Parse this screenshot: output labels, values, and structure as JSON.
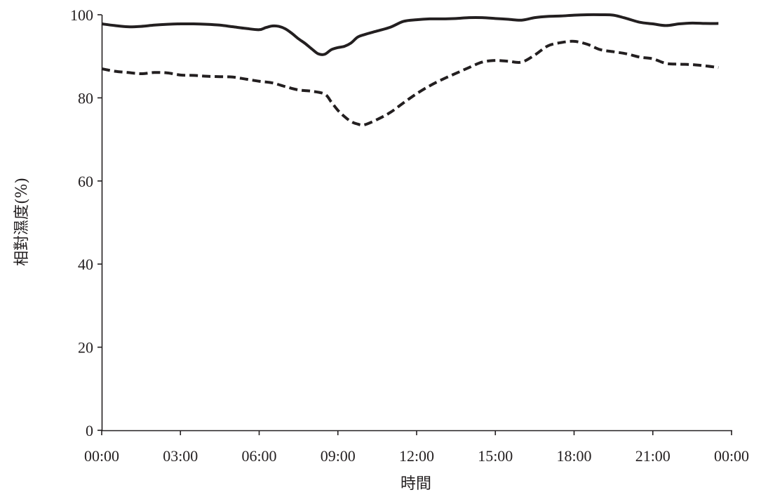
{
  "chart_data": {
    "type": "line",
    "xlabel": "時間",
    "ylabel": "相對濕度(%)",
    "x_tick_labels": [
      "00:00",
      "03:00",
      "06:00",
      "09:00",
      "12:00",
      "15:00",
      "18:00",
      "21:00",
      "00:00"
    ],
    "y_tick_labels": [
      "0",
      "20",
      "40",
      "60",
      "80",
      "100"
    ],
    "xlim": [
      0,
      24
    ],
    "ylim": [
      0,
      100
    ],
    "grid": false,
    "legend": null,
    "series": [
      {
        "style": "solid",
        "x": [
          0,
          0.5,
          1,
          1.5,
          2,
          2.5,
          3,
          3.5,
          4,
          4.5,
          5,
          5.5,
          6,
          6.25,
          6.5,
          6.75,
          7,
          7.25,
          7.5,
          7.75,
          8,
          8.25,
          8.5,
          8.75,
          9,
          9.25,
          9.5,
          9.75,
          10,
          10.5,
          11,
          11.5,
          12,
          12.5,
          13,
          13.5,
          14,
          14.5,
          15,
          15.5,
          16,
          16.5,
          17,
          17.5,
          18,
          18.5,
          19,
          19.5,
          20,
          20.5,
          21,
          21.5,
          22,
          22.5,
          23,
          23.5
        ],
        "y": [
          97.8,
          97.4,
          97.1,
          97.2,
          97.5,
          97.7,
          97.8,
          97.8,
          97.7,
          97.5,
          97.1,
          96.7,
          96.4,
          96.9,
          97.3,
          97.2,
          96.6,
          95.5,
          94.2,
          93.1,
          91.8,
          90.6,
          90.5,
          91.6,
          92.1,
          92.4,
          93.2,
          94.6,
          95.2,
          96.1,
          97.0,
          98.4,
          98.8,
          99.0,
          99.0,
          99.1,
          99.3,
          99.3,
          99.1,
          98.9,
          98.7,
          99.3,
          99.6,
          99.7,
          99.9,
          100.0,
          100.0,
          99.9,
          99.1,
          98.2,
          97.8,
          97.4,
          97.8,
          98.0,
          97.9,
          97.9
        ]
      },
      {
        "style": "dashed",
        "x": [
          0,
          0.5,
          1,
          1.5,
          2,
          2.5,
          3,
          3.5,
          4,
          4.5,
          5,
          5.5,
          6,
          6.5,
          7,
          7.5,
          8,
          8.5,
          8.75,
          9,
          9.25,
          9.5,
          9.75,
          10,
          10.5,
          11,
          11.5,
          12,
          12.5,
          13,
          13.5,
          14,
          14.5,
          15,
          15.5,
          16,
          16.5,
          17,
          17.5,
          18,
          18.5,
          19,
          19.5,
          20,
          20.5,
          21,
          21.5,
          22,
          22.5,
          23,
          23.5
        ],
        "y": [
          87.0,
          86.4,
          86.1,
          85.8,
          86.1,
          86.0,
          85.5,
          85.4,
          85.2,
          85.1,
          85.0,
          84.5,
          84.0,
          83.6,
          82.7,
          81.9,
          81.6,
          80.9,
          79.0,
          77.0,
          75.5,
          74.3,
          73.7,
          73.5,
          74.8,
          76.5,
          78.8,
          81.0,
          82.9,
          84.5,
          85.9,
          87.3,
          88.6,
          89.0,
          88.8,
          88.6,
          90.3,
          92.5,
          93.3,
          93.6,
          92.9,
          91.6,
          91.1,
          90.6,
          89.8,
          89.4,
          88.3,
          88.1,
          88.0,
          87.7,
          87.3
        ]
      }
    ]
  }
}
